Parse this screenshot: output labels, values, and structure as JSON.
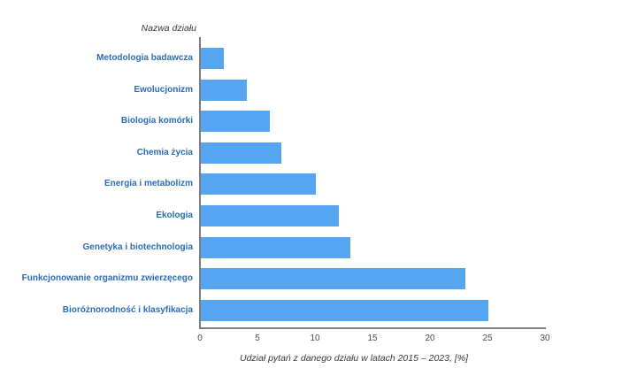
{
  "chart_data": {
    "type": "bar",
    "orientation": "horizontal",
    "y_axis_title": "Nazwa działu",
    "x_axis_title": "Udział pytań z danego działu w latach 2015 – 2023, [%]",
    "categories": [
      "Metodologia badawcza",
      "Ewolucjonizm",
      "Biologia komórki",
      "Chemia życia",
      "Energia i metabolizm",
      "Ekologia",
      "Genetyka i biotechnologia",
      "Funkcjonowanie organizmu zwierzęcego",
      "Bioróżnorodność i klasyfikacja"
    ],
    "values": [
      2,
      4,
      6,
      7,
      10,
      12,
      13,
      23,
      25
    ],
    "x_ticks": [
      0,
      5,
      10,
      15,
      20,
      25,
      30
    ],
    "xlim": [
      0,
      30
    ],
    "grid": false,
    "legend": false,
    "bar_color": "#56a5f0",
    "category_label_color": "#2a6db8",
    "axis_line_color": "#7e7e7e"
  }
}
